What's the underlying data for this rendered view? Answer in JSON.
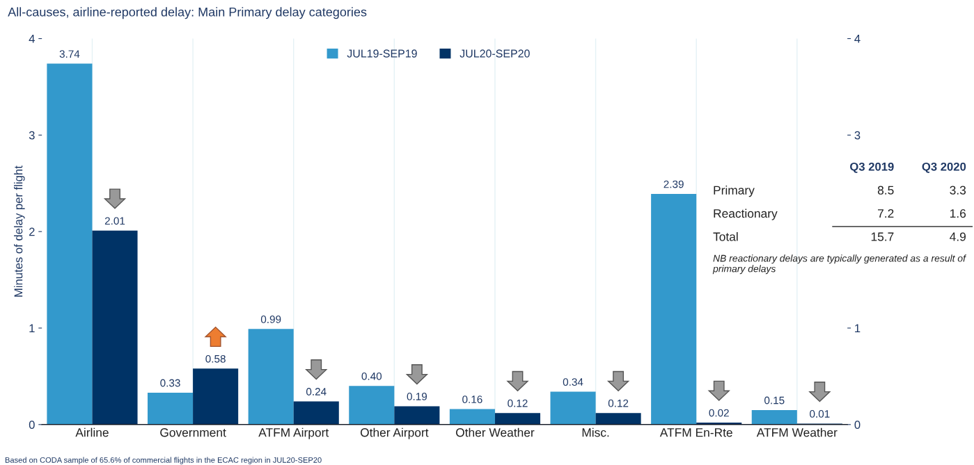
{
  "chart_data": {
    "type": "bar",
    "title": "All-causes, airline-reported delay: Main Primary delay categories",
    "ylabel": "Minutes of delay per flight",
    "categories": [
      "Airline",
      "Government",
      "ATFM Airport",
      "Other Airport",
      "Other Weather",
      "Misc.",
      "ATFM En-Rte",
      "ATFM Weather"
    ],
    "series": [
      {
        "name": "JUL19-SEP19",
        "color": "#3399cc",
        "values": [
          3.74,
          0.33,
          0.99,
          0.4,
          0.16,
          0.34,
          2.39,
          0.15
        ],
        "value_labels": [
          "3.74",
          "0.33",
          "0.99",
          "0.40",
          "0.16",
          "0.34",
          "2.39",
          "0.15"
        ]
      },
      {
        "name": "JUL20-SEP20",
        "color": "#003366",
        "values": [
          2.01,
          0.58,
          0.24,
          0.19,
          0.12,
          0.12,
          0.02,
          0.01
        ],
        "value_labels": [
          "2.01",
          "0.58",
          "0.24",
          "0.19",
          "0.12",
          "0.12",
          "0.02",
          "0.01"
        ]
      }
    ],
    "ylim": [
      0,
      4
    ],
    "yticks": [
      0,
      1,
      2,
      3,
      4
    ],
    "y2lim": [
      0,
      4
    ],
    "y2ticks": [
      0,
      1,
      3,
      4
    ],
    "grid": "x",
    "legend": "top",
    "annotations": [
      "Q3 2019",
      "Q3 2020",
      "Primary",
      "8.5",
      "3.3",
      "Reactionary",
      "7.2",
      "1.6",
      "Total",
      "15.7",
      "4.9",
      "NB reactionary delays are typically generated as a result of primary delays",
      "Based on CODA sample of 65.6% of commercial flights in the ECAC region in JUL20-SEP20"
    ]
  }
}
